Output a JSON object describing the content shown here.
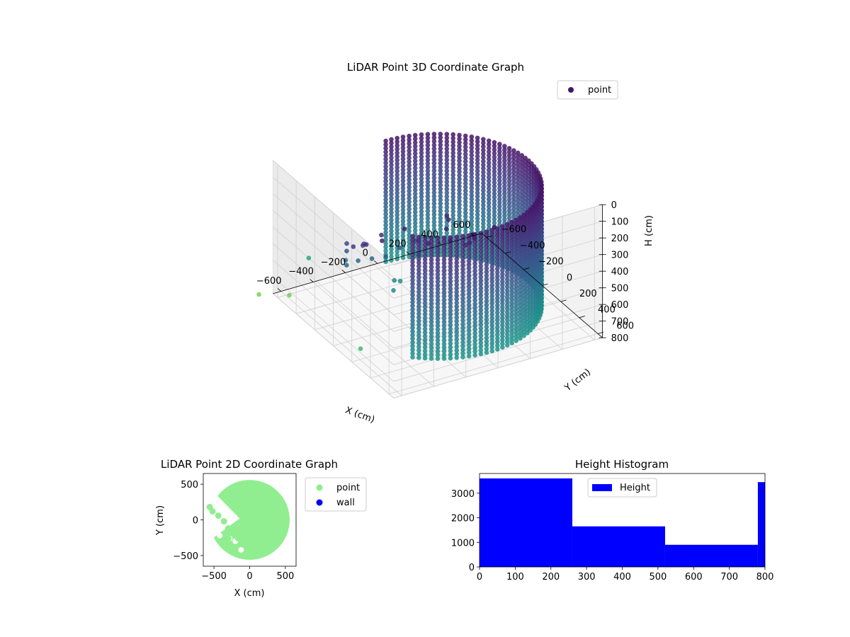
{
  "chart_data": [
    {
      "type": "scatter",
      "title": "LiDAR Point 3D Coordinate Graph",
      "xlabel": "X (cm)",
      "ylabel": "Y (cm)",
      "zlabel": "H (cm)",
      "legend": {
        "entries": [
          "point"
        ],
        "position": "upper-right"
      },
      "colormap": "viridis",
      "marker_color": "#45166b",
      "xlim": [
        -650,
        650
      ],
      "ylim": [
        -650,
        650
      ],
      "zlim": [
        0,
        800
      ],
      "z_inverted": true,
      "x_ticks": [
        -600,
        -400,
        -200,
        0,
        200,
        400,
        600
      ],
      "x_tick_labels": [
        "−600",
        "−400",
        "−200",
        "0",
        "200",
        "400",
        "600"
      ],
      "y_ticks": [
        -600,
        -400,
        -200,
        0,
        200,
        400,
        600
      ],
      "y_tick_labels": [
        "−600",
        "−400",
        "−200",
        "0",
        "200",
        "400",
        "600"
      ],
      "z_ticks": [
        0,
        100,
        200,
        300,
        400,
        500,
        600,
        700,
        800
      ],
      "z_tick_labels": [
        "0",
        "100",
        "200",
        "300",
        "400",
        "500",
        "600",
        "700",
        "800"
      ],
      "grid": true,
      "wall": {
        "radius": 560,
        "arc_start_deg": -90,
        "arc_end_deg": 135,
        "h_top": 20,
        "h_bottom": 760
      },
      "series": [
        {
          "name": "point",
          "points": [
            [
              -520,
              300,
              60
            ],
            [
              -560,
              200,
              120
            ],
            [
              -560,
              60,
              200
            ],
            [
              -520,
              -80,
              260
            ],
            [
              -480,
              -150,
              350
            ],
            [
              -440,
              -220,
              480
            ],
            [
              -400,
              -300,
              500
            ],
            [
              -300,
              420,
              80
            ],
            [
              -200,
              480,
              60
            ],
            [
              -80,
              520,
              40
            ],
            [
              40,
              540,
              20
            ],
            [
              -120,
              300,
              100
            ],
            [
              -60,
              220,
              100
            ],
            [
              -30,
              150,
              120
            ],
            [
              -180,
              80,
              260
            ],
            [
              -260,
              40,
              300
            ],
            [
              -300,
              -40,
              380
            ],
            [
              -340,
              -120,
              420
            ],
            [
              -380,
              -200,
              460
            ],
            [
              -350,
              250,
              60
            ],
            [
              -420,
              120,
              140
            ],
            [
              -460,
              0,
              240
            ],
            [
              -420,
              -80,
              300
            ],
            [
              -560,
              -420,
              500
            ],
            [
              -600,
              -560,
              780
            ],
            [
              -700,
              380,
              620
            ],
            [
              -720,
              -680,
              800
            ],
            [
              200,
              -560,
              760
            ],
            [
              220,
              -620,
              800
            ],
            [
              -120,
              -260,
              680
            ],
            [
              -160,
              -200,
              700
            ],
            [
              -60,
              -300,
              720
            ],
            [
              -80,
              440,
              140
            ],
            [
              -30,
              400,
              160
            ],
            [
              0,
              380,
              130
            ],
            [
              -50,
              480,
              90
            ]
          ]
        }
      ]
    },
    {
      "type": "scatter",
      "title": "LiDAR Point 2D Coordinate Graph",
      "xlabel": "X (cm)",
      "ylabel": "Y (cm)",
      "xlim": [
        -650,
        650
      ],
      "ylim": [
        -650,
        650
      ],
      "x_ticks": [
        -500,
        0,
        500
      ],
      "x_tick_labels": [
        "−500",
        "0",
        "500"
      ],
      "y_ticks": [
        -500,
        0,
        500
      ],
      "y_tick_labels": [
        "−500",
        "0",
        "500"
      ],
      "legend": {
        "entries": [
          "point",
          "wall"
        ],
        "position": "outside-right"
      },
      "series": [
        {
          "name": "point",
          "color": "#90ee90"
        },
        {
          "name": "wall",
          "color": "#0000ff",
          "points": []
        }
      ],
      "missing_region": {
        "from_deg": 140,
        "to_deg": 210
      },
      "gaps": [
        [
          -600,
          -80
        ],
        [
          -520,
          -60
        ],
        [
          -480,
          -150
        ],
        [
          -420,
          -220
        ],
        [
          -280,
          -260
        ],
        [
          -200,
          -300
        ],
        [
          -120,
          -420
        ],
        [
          -450,
          20
        ],
        [
          -330,
          30
        ],
        [
          -250,
          20
        ],
        [
          -520,
          180
        ],
        [
          -430,
          120
        ],
        [
          -580,
          -320
        ]
      ]
    },
    {
      "type": "histogram",
      "title": "Height Histogram",
      "xlabel": "",
      "ylabel": "",
      "legend": {
        "entries": [
          "Height"
        ],
        "position": "upper-center"
      },
      "color": "#0000ff",
      "bins": [
        {
          "x0": 0,
          "x1": 260,
          "count": 3600
        },
        {
          "x0": 260,
          "x1": 520,
          "count": 1650
        },
        {
          "x0": 520,
          "x1": 780,
          "count": 900
        },
        {
          "x0": 780,
          "x1": 800,
          "count": 3450
        }
      ],
      "xlim": [
        0,
        800
      ],
      "ylim": [
        0,
        3800
      ],
      "x_ticks": [
        0,
        100,
        200,
        300,
        400,
        500,
        600,
        700,
        800
      ],
      "y_ticks": [
        0,
        1000,
        2000,
        3000
      ]
    }
  ]
}
